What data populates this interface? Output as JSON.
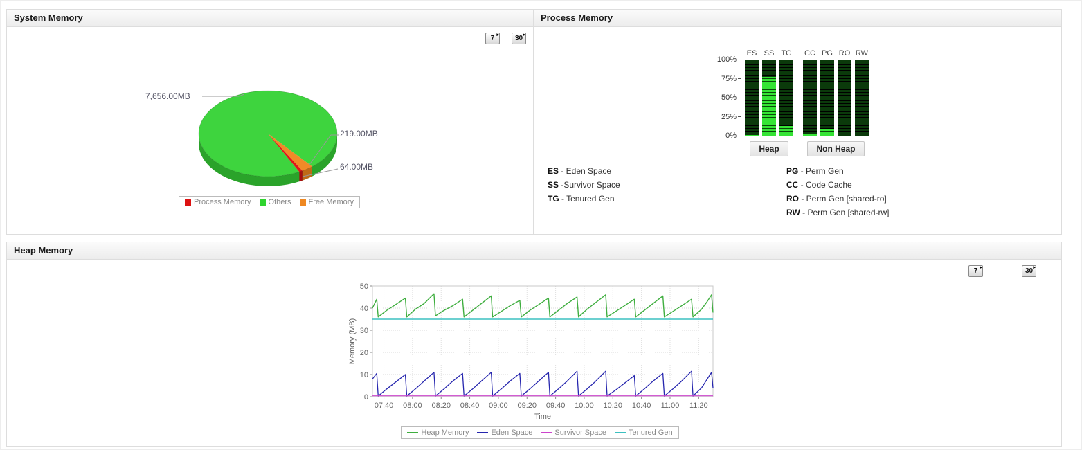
{
  "system_memory": {
    "title": "System Memory",
    "range_buttons": [
      {
        "label": "7"
      },
      {
        "label": "30"
      }
    ],
    "chart_data": {
      "type": "pie",
      "title": "System Memory",
      "unit": "MB",
      "slices": [
        {
          "label": "Process Memory",
          "value": 64.0,
          "display": "64.00MB",
          "color": "#e01818",
          "side": "#a80f0f"
        },
        {
          "label": "Others",
          "value": 7656.0,
          "display": "7,656.00MB",
          "color": "#3ed43e",
          "side": "#2aa32a"
        },
        {
          "label": "Free Memory",
          "value": 219.0,
          "display": "219.00MB",
          "color": "#f08a28",
          "side": "#bf6a16"
        }
      ]
    },
    "legend": [
      {
        "label": "Process Memory",
        "color": "#dd1111"
      },
      {
        "label": "Others",
        "color": "#2fd42f"
      },
      {
        "label": "Free Memory",
        "color": "#ee8822"
      }
    ]
  },
  "process_memory": {
    "title": "Process Memory",
    "chart_data": {
      "type": "bar",
      "unit": "%",
      "ylim": [
        0,
        100
      ],
      "y_ticks": [
        "100%",
        "75%",
        "50%",
        "25%",
        "0%"
      ],
      "groups": [
        {
          "label": "Heap",
          "bars": [
            {
              "code": "ES",
              "pct": 2
            },
            {
              "code": "SS",
              "pct": 78
            },
            {
              "code": "TG",
              "pct": 14
            }
          ]
        },
        {
          "label": "Non Heap",
          "bars": [
            {
              "code": "CC",
              "pct": 3
            },
            {
              "code": "PG",
              "pct": 10
            },
            {
              "code": "RO",
              "pct": 1
            },
            {
              "code": "RW",
              "pct": 1
            }
          ]
        }
      ]
    },
    "legend_left": [
      {
        "abbr": "ES",
        "desc": " - Eden Space"
      },
      {
        "abbr": "SS",
        "desc": " -Survivor Space"
      },
      {
        "abbr": "TG",
        "desc": " - Tenured Gen"
      }
    ],
    "legend_right": [
      {
        "abbr": "PG",
        "desc": " - Perm Gen"
      },
      {
        "abbr": "CC",
        "desc": " - Code Cache"
      },
      {
        "abbr": "RO",
        "desc": " - Perm Gen [shared-ro]"
      },
      {
        "abbr": "RW",
        "desc": " - Perm Gen [shared-rw]"
      }
    ]
  },
  "heap_memory": {
    "title": "Heap Memory",
    "range_buttons": [
      {
        "label": "7"
      },
      {
        "label": "30"
      }
    ],
    "chart_data": {
      "type": "line",
      "xlabel": "Time",
      "ylabel": "Memory (MB)",
      "ylim": [
        0,
        50
      ],
      "y_ticks": [
        0,
        10,
        20,
        30,
        40,
        50
      ],
      "x_range": [
        452,
        690
      ],
      "x_ticks": [
        {
          "t": 460,
          "label": "07:40"
        },
        {
          "t": 480,
          "label": "08:00"
        },
        {
          "t": 500,
          "label": "08:20"
        },
        {
          "t": 520,
          "label": "08:40"
        },
        {
          "t": 540,
          "label": "09:00"
        },
        {
          "t": 560,
          "label": "09:20"
        },
        {
          "t": 580,
          "label": "09:40"
        },
        {
          "t": 600,
          "label": "10:00"
        },
        {
          "t": 620,
          "label": "10:20"
        },
        {
          "t": 640,
          "label": "10:40"
        },
        {
          "t": 660,
          "label": "11:00"
        },
        {
          "t": 680,
          "label": "11:20"
        }
      ],
      "series": [
        {
          "name": "Heap Memory",
          "color": "#3fae3f",
          "width": 1.4,
          "points": [
            [
              452,
              40
            ],
            [
              455,
              44
            ],
            [
              456,
              36
            ],
            [
              462,
              39
            ],
            [
              468,
              41.5
            ],
            [
              475,
              44.5
            ],
            [
              476,
              36
            ],
            [
              482,
              39.5
            ],
            [
              488,
              42
            ],
            [
              495,
              46.5
            ],
            [
              496,
              36.5
            ],
            [
              502,
              39
            ],
            [
              508,
              41
            ],
            [
              515,
              44
            ],
            [
              516,
              36
            ],
            [
              522,
              39
            ],
            [
              528,
              42
            ],
            [
              535,
              45.5
            ],
            [
              536,
              36
            ],
            [
              542,
              38.5
            ],
            [
              548,
              41
            ],
            [
              555,
              43.5
            ],
            [
              556,
              36
            ],
            [
              562,
              39
            ],
            [
              568,
              41.5
            ],
            [
              575,
              44.5
            ],
            [
              576,
              36
            ],
            [
              582,
              39
            ],
            [
              588,
              42
            ],
            [
              595,
              45
            ],
            [
              596,
              36
            ],
            [
              602,
              39.5
            ],
            [
              608,
              42.5
            ],
            [
              615,
              46
            ],
            [
              616,
              36
            ],
            [
              622,
              38.5
            ],
            [
              628,
              41
            ],
            [
              635,
              44
            ],
            [
              636,
              36
            ],
            [
              642,
              39
            ],
            [
              648,
              42
            ],
            [
              655,
              45.5
            ],
            [
              656,
              36
            ],
            [
              662,
              38.5
            ],
            [
              668,
              41
            ],
            [
              675,
              44
            ],
            [
              676,
              36
            ],
            [
              682,
              39.5
            ],
            [
              686,
              43
            ],
            [
              689,
              46
            ],
            [
              690,
              38
            ]
          ]
        },
        {
          "name": "Eden Space",
          "color": "#2626ae",
          "width": 1.3,
          "points": [
            [
              452,
              8
            ],
            [
              455,
              10.5
            ],
            [
              456,
              0.3
            ],
            [
              462,
              3.5
            ],
            [
              468,
              6.5
            ],
            [
              475,
              10
            ],
            [
              476,
              0.3
            ],
            [
              482,
              3.5
            ],
            [
              488,
              7
            ],
            [
              495,
              11
            ],
            [
              496,
              0.3
            ],
            [
              502,
              3.5
            ],
            [
              508,
              7
            ],
            [
              515,
              10.5
            ],
            [
              516,
              0.3
            ],
            [
              522,
              3.5
            ],
            [
              528,
              7
            ],
            [
              535,
              11
            ],
            [
              536,
              0.3
            ],
            [
              542,
              3.5
            ],
            [
              548,
              7
            ],
            [
              555,
              10.5
            ],
            [
              556,
              0.3
            ],
            [
              562,
              3.5
            ],
            [
              568,
              7
            ],
            [
              575,
              11
            ],
            [
              576,
              0.3
            ],
            [
              582,
              3.5
            ],
            [
              588,
              7
            ],
            [
              595,
              11.5
            ],
            [
              596,
              0.3
            ],
            [
              602,
              3.5
            ],
            [
              608,
              7
            ],
            [
              615,
              11.5
            ],
            [
              616,
              0.3
            ],
            [
              622,
              3
            ],
            [
              628,
              6
            ],
            [
              635,
              9.5
            ],
            [
              636,
              0.3
            ],
            [
              642,
              3.5
            ],
            [
              648,
              7
            ],
            [
              655,
              10.5
            ],
            [
              656,
              0.3
            ],
            [
              662,
              3.5
            ],
            [
              668,
              7
            ],
            [
              675,
              11.5
            ],
            [
              676,
              0.3
            ],
            [
              682,
              4
            ],
            [
              686,
              8
            ],
            [
              689,
              11
            ],
            [
              690,
              4
            ]
          ]
        },
        {
          "name": "Survivor Space",
          "color": "#cc44cc",
          "width": 1.2,
          "points": [
            [
              452,
              0.4
            ],
            [
              690,
              0.4
            ]
          ]
        },
        {
          "name": "Tenured Gen",
          "color": "#3cc0c0",
          "width": 1.4,
          "points": [
            [
              452,
              35
            ],
            [
              690,
              35
            ]
          ]
        }
      ]
    }
  }
}
